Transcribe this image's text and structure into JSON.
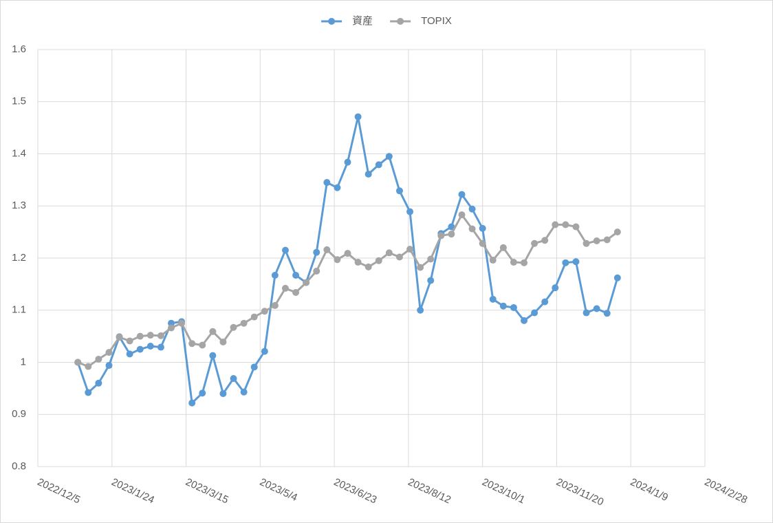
{
  "chart_data": {
    "type": "line",
    "x": [
      "2023/1/1",
      "2023/1/8",
      "2023/1/15",
      "2023/1/22",
      "2023/1/29",
      "2023/2/5",
      "2023/2/12",
      "2023/2/19",
      "2023/2/26",
      "2023/3/5",
      "2023/3/12",
      "2023/3/19",
      "2023/3/26",
      "2023/4/2",
      "2023/4/9",
      "2023/4/16",
      "2023/4/23",
      "2023/4/30",
      "2023/5/7",
      "2023/5/14",
      "2023/5/21",
      "2023/5/28",
      "2023/6/4",
      "2023/6/11",
      "2023/6/18",
      "2023/6/25",
      "2023/7/2",
      "2023/7/9",
      "2023/7/16",
      "2023/7/23",
      "2023/7/30",
      "2023/8/6",
      "2023/8/13",
      "2023/8/20",
      "2023/8/27",
      "2023/9/3",
      "2023/9/10",
      "2023/9/17",
      "2023/9/24",
      "2023/10/1",
      "2023/10/8",
      "2023/10/15",
      "2023/10/22",
      "2023/10/29",
      "2023/11/5",
      "2023/11/12",
      "2023/11/19",
      "2023/11/26",
      "2023/12/3",
      "2023/12/10",
      "2023/12/17",
      "2023/12/24",
      "2023/12/31"
    ],
    "series": [
      {
        "name": "資産",
        "color": "#5b9bd5",
        "values": [
          1.0,
          0.942,
          0.96,
          0.994,
          1.049,
          1.016,
          1.025,
          1.031,
          1.029,
          1.075,
          1.078,
          0.922,
          0.941,
          1.013,
          0.94,
          0.969,
          0.943,
          0.991,
          1.021,
          1.167,
          1.215,
          1.167,
          1.153,
          1.211,
          1.345,
          1.335,
          1.384,
          1.471,
          1.361,
          1.379,
          1.395,
          1.329,
          1.289,
          1.1,
          1.157,
          1.247,
          1.26,
          1.322,
          1.294,
          1.257,
          1.121,
          1.108,
          1.105,
          1.08,
          1.095,
          1.116,
          1.143,
          1.191,
          1.193,
          1.095,
          1.103,
          1.094,
          1.162
        ]
      },
      {
        "name": "TOPIX",
        "color": "#a5a5a5",
        "values": [
          1.0,
          0.992,
          1.006,
          1.019,
          1.048,
          1.041,
          1.05,
          1.052,
          1.051,
          1.066,
          1.075,
          1.036,
          1.033,
          1.059,
          1.039,
          1.067,
          1.075,
          1.087,
          1.098,
          1.109,
          1.142,
          1.134,
          1.153,
          1.175,
          1.216,
          1.197,
          1.209,
          1.192,
          1.183,
          1.195,
          1.21,
          1.202,
          1.217,
          1.182,
          1.198,
          1.243,
          1.246,
          1.283,
          1.256,
          1.228,
          1.196,
          1.22,
          1.192,
          1.191,
          1.228,
          1.234,
          1.264,
          1.264,
          1.26,
          1.228,
          1.233,
          1.235,
          1.25
        ]
      }
    ],
    "xlim": [
      "2022/12/5",
      "2024/2/28"
    ],
    "xticks": [
      "2022/12/5",
      "2023/1/24",
      "2023/3/15",
      "2023/5/4",
      "2023/6/23",
      "2023/8/12",
      "2023/10/1",
      "2023/11/20",
      "2024/1/9",
      "2024/2/28"
    ],
    "ylim": [
      0.8,
      1.6
    ],
    "yticks": [
      0.8,
      0.9,
      1,
      1.1,
      1.2,
      1.3,
      1.4,
      1.5,
      1.6
    ],
    "grid": true,
    "legend": "top"
  }
}
